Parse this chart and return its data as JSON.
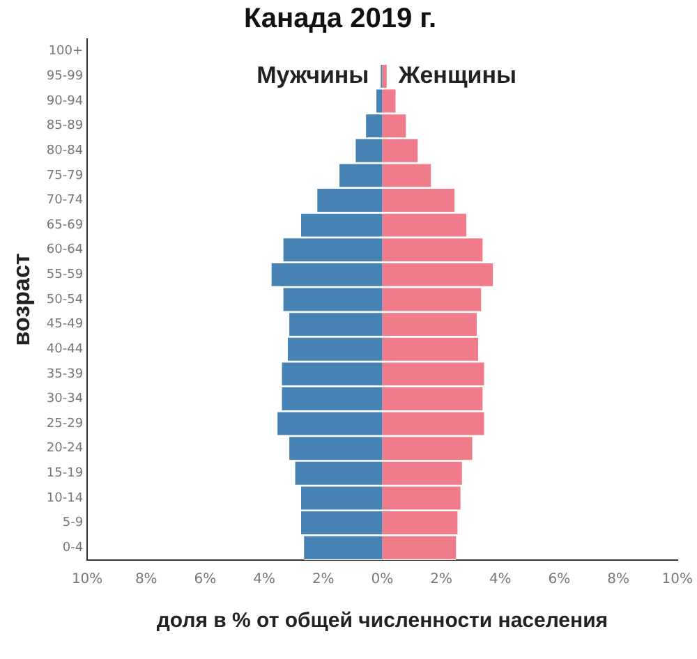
{
  "chart_data": {
    "type": "bar",
    "orientation": "horizontal",
    "stacked": true,
    "title": "Канада 2019 г.",
    "xlabel": "доля в % от общей численности населения",
    "ylabel": "возраст",
    "categories": [
      "100+",
      "95-99",
      "90-94",
      "85-89",
      "80-84",
      "75-79",
      "70-74",
      "65-69",
      "60-64",
      "55-59",
      "50-54",
      "45-49",
      "40-44",
      "35-39",
      "30-34",
      "25-29",
      "20-24",
      "15-19",
      "10-14",
      "5-9",
      "0-4"
    ],
    "series": [
      {
        "name": "Мужчины",
        "color": "#4682b4",
        "values": [
          0,
          -0.05,
          -0.2,
          -0.55,
          -0.9,
          -1.45,
          -2.2,
          -2.75,
          -3.35,
          -3.75,
          -3.35,
          -3.15,
          -3.2,
          -3.4,
          -3.4,
          -3.55,
          -3.15,
          -2.95,
          -2.75,
          -2.75,
          -2.65
        ]
      },
      {
        "name": "Женщины",
        "color": "#ef7b8b",
        "values": [
          0,
          0.15,
          0.45,
          0.8,
          1.2,
          1.65,
          2.45,
          2.85,
          3.4,
          3.75,
          3.35,
          3.2,
          3.25,
          3.45,
          3.4,
          3.45,
          3.05,
          2.7,
          2.65,
          2.55,
          2.5
        ]
      }
    ],
    "xlim": [
      -10,
      10
    ],
    "xticks": [
      {
        "value": -10,
        "label": "10%"
      },
      {
        "value": -8,
        "label": "8%"
      },
      {
        "value": -6,
        "label": "6%"
      },
      {
        "value": -4,
        "label": "4%"
      },
      {
        "value": -2,
        "label": "2%"
      },
      {
        "value": 0,
        "label": "0%"
      },
      {
        "value": 2,
        "label": "2%"
      },
      {
        "value": 4,
        "label": "4%"
      },
      {
        "value": 6,
        "label": "6%"
      },
      {
        "value": 8,
        "label": "8%"
      },
      {
        "value": 10,
        "label": "10%"
      }
    ],
    "grid": false,
    "legend": false
  }
}
